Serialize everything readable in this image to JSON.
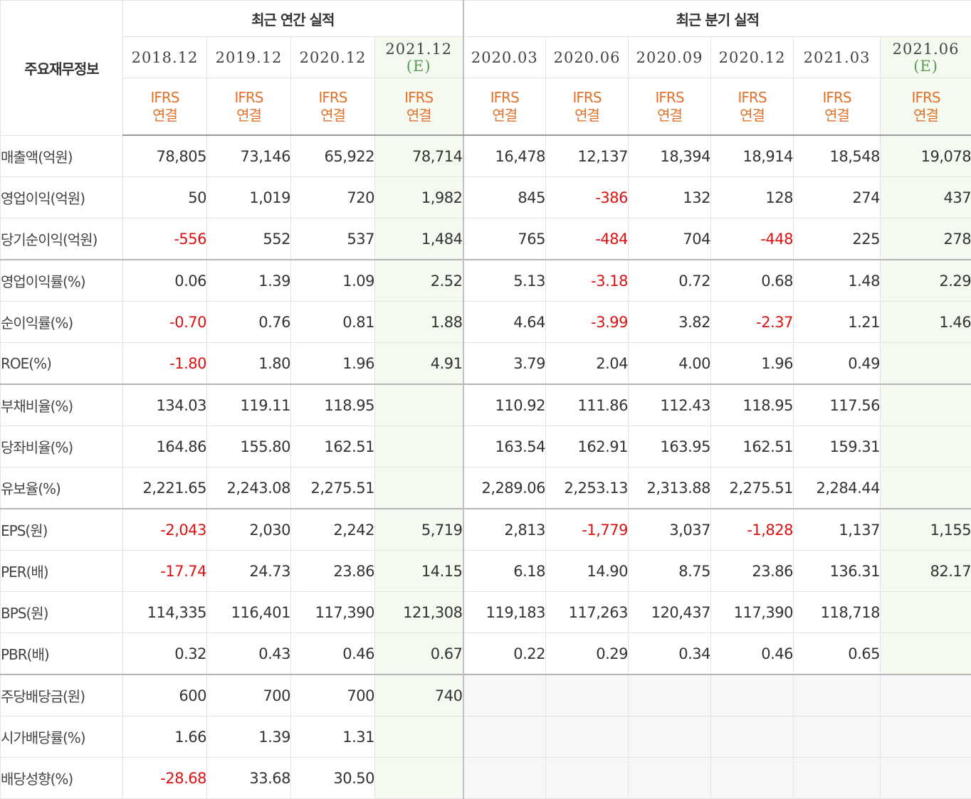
{
  "table": {
    "label_header": "주요재무정보",
    "annual_group": "최근 연간 실적",
    "quarter_group": "최근 분기 실적",
    "annual_periods": [
      {
        "year": "2018.12",
        "estimate": "",
        "std1": "IFRS",
        "std2": "연결"
      },
      {
        "year": "2019.12",
        "estimate": "",
        "std1": "IFRS",
        "std2": "연결"
      },
      {
        "year": "2020.12",
        "estimate": "",
        "std1": "IFRS",
        "std2": "연결"
      },
      {
        "year": "2021.12",
        "estimate": "(E)",
        "std1": "IFRS",
        "std2": "연결"
      }
    ],
    "quarter_periods": [
      {
        "year": "2020.03",
        "estimate": "",
        "std1": "IFRS",
        "std2": "연결"
      },
      {
        "year": "2020.06",
        "estimate": "",
        "std1": "IFRS",
        "std2": "연결"
      },
      {
        "year": "2020.09",
        "estimate": "",
        "std1": "IFRS",
        "std2": "연결"
      },
      {
        "year": "2020.12",
        "estimate": "",
        "std1": "IFRS",
        "std2": "연결"
      },
      {
        "year": "2021.03",
        "estimate": "",
        "std1": "IFRS",
        "std2": "연결"
      },
      {
        "year": "2021.06",
        "estimate": "(E)",
        "std1": "IFRS",
        "std2": "연결"
      }
    ],
    "rows": [
      {
        "label": "매출액(억원)",
        "group_start": true,
        "values": [
          "78,805",
          "73,146",
          "65,922",
          "78,714",
          "16,478",
          "12,137",
          "18,394",
          "18,914",
          "18,548",
          "19,078"
        ]
      },
      {
        "label": "영업이익(억원)",
        "group_start": false,
        "values": [
          "50",
          "1,019",
          "720",
          "1,982",
          "845",
          "-386",
          "132",
          "128",
          "274",
          "437"
        ]
      },
      {
        "label": "당기순이익(억원)",
        "group_start": false,
        "values": [
          "-556",
          "552",
          "537",
          "1,484",
          "765",
          "-484",
          "704",
          "-448",
          "225",
          "278"
        ]
      },
      {
        "label": "영업이익률(%)",
        "group_start": true,
        "values": [
          "0.06",
          "1.39",
          "1.09",
          "2.52",
          "5.13",
          "-3.18",
          "0.72",
          "0.68",
          "1.48",
          "2.29"
        ]
      },
      {
        "label": "순이익률(%)",
        "group_start": false,
        "values": [
          "-0.70",
          "0.76",
          "0.81",
          "1.88",
          "4.64",
          "-3.99",
          "3.82",
          "-2.37",
          "1.21",
          "1.46"
        ]
      },
      {
        "label": "ROE(%)",
        "group_start": false,
        "values": [
          "-1.80",
          "1.80",
          "1.96",
          "4.91",
          "3.79",
          "2.04",
          "4.00",
          "1.96",
          "0.49",
          ""
        ]
      },
      {
        "label": "부채비율(%)",
        "group_start": true,
        "values": [
          "134.03",
          "119.11",
          "118.95",
          "",
          "110.92",
          "111.86",
          "112.43",
          "118.95",
          "117.56",
          ""
        ]
      },
      {
        "label": "당좌비율(%)",
        "group_start": false,
        "values": [
          "164.86",
          "155.80",
          "162.51",
          "",
          "163.54",
          "162.91",
          "163.95",
          "162.51",
          "159.31",
          ""
        ]
      },
      {
        "label": "유보율(%)",
        "group_start": false,
        "values": [
          "2,221.65",
          "2,243.08",
          "2,275.51",
          "",
          "2,289.06",
          "2,253.13",
          "2,313.88",
          "2,275.51",
          "2,284.44",
          ""
        ]
      },
      {
        "label": "EPS(원)",
        "group_start": true,
        "values": [
          "-2,043",
          "2,030",
          "2,242",
          "5,719",
          "2,813",
          "-1,779",
          "3,037",
          "-1,828",
          "1,137",
          "1,155"
        ]
      },
      {
        "label": "PER(배)",
        "group_start": false,
        "values": [
          "-17.74",
          "24.73",
          "23.86",
          "14.15",
          "6.18",
          "14.90",
          "8.75",
          "23.86",
          "136.31",
          "82.17"
        ]
      },
      {
        "label": "BPS(원)",
        "group_start": false,
        "values": [
          "114,335",
          "116,401",
          "117,390",
          "121,308",
          "119,183",
          "117,263",
          "120,437",
          "117,390",
          "118,718",
          ""
        ]
      },
      {
        "label": "PBR(배)",
        "group_start": false,
        "values": [
          "0.32",
          "0.43",
          "0.46",
          "0.67",
          "0.22",
          "0.29",
          "0.34",
          "0.46",
          "0.65",
          ""
        ]
      },
      {
        "label": "주당배당금(원)",
        "group_start": true,
        "values": [
          "600",
          "700",
          "700",
          "740",
          "",
          "",
          "",
          "",
          "",
          ""
        ],
        "quarters_blank": true
      },
      {
        "label": "시가배당률(%)",
        "group_start": false,
        "values": [
          "1.66",
          "1.39",
          "1.31",
          "",
          "",
          "",
          "",
          "",
          "",
          ""
        ],
        "quarters_blank": true
      },
      {
        "label": "배당성향(%)",
        "group_start": false,
        "values": [
          "-28.68",
          "33.68",
          "30.50",
          "",
          "",
          "",
          "",
          "",
          "",
          ""
        ],
        "quarters_blank": true
      }
    ]
  },
  "colors": {
    "negative": "#dd1111",
    "ifrs": "#e2712b",
    "estimate_mark": "#5a9a53",
    "estimate_bg": "#f5faf1"
  }
}
